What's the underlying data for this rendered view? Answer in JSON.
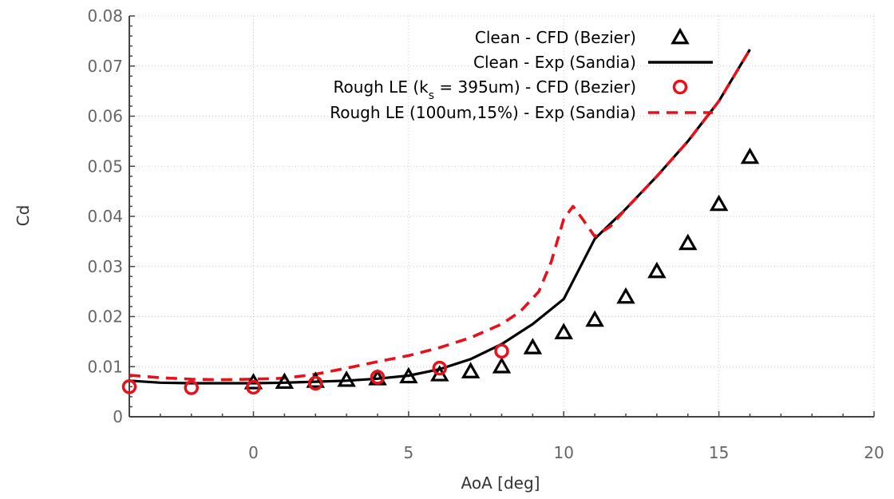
{
  "chart_data": {
    "type": "line",
    "title": "",
    "xlabel": "AoA [deg]",
    "ylabel": "Cd",
    "xlim": [
      -4,
      20
    ],
    "ylim": [
      0,
      0.08
    ],
    "x_ticks": [
      0,
      5,
      10,
      15,
      20
    ],
    "x_tick_labels": [
      "0",
      "5",
      "10",
      "15",
      "20"
    ],
    "y_ticks": [
      0,
      0.01,
      0.02,
      0.03,
      0.04,
      0.05,
      0.06,
      0.07,
      0.08
    ],
    "y_tick_labels": [
      "0",
      "0.01",
      "0.02",
      "0.03",
      "0.04",
      "0.05",
      "0.06",
      "0.07",
      "0.08"
    ],
    "grid": true,
    "legend_position": "top-right",
    "series": [
      {
        "name": "Clean - CFD (Bezier)",
        "style": "markers",
        "marker": "triangle",
        "color": "#000000",
        "x": [
          0,
          1,
          2,
          3,
          4,
          5,
          6,
          7,
          8,
          9,
          10,
          11,
          12,
          13,
          14,
          15,
          16
        ],
        "y": [
          0.0068,
          0.0069,
          0.0071,
          0.0073,
          0.0076,
          0.008,
          0.0084,
          0.009,
          0.01,
          0.0138,
          0.0168,
          0.0193,
          0.0239,
          0.029,
          0.0346,
          0.0424,
          0.0518
        ]
      },
      {
        "name": "Clean - Exp (Sandia)",
        "style": "solid",
        "color": "#000000",
        "x": [
          -4,
          -3,
          -2,
          -1,
          0,
          1,
          2,
          3,
          4,
          5,
          6,
          7,
          8,
          9,
          10,
          11,
          12,
          13,
          14,
          15,
          16
        ],
        "y": [
          0.0072,
          0.0068,
          0.0067,
          0.0067,
          0.0067,
          0.0068,
          0.007,
          0.0072,
          0.0076,
          0.0082,
          0.0095,
          0.0115,
          0.0145,
          0.0185,
          0.0235,
          0.0355,
          0.0415,
          0.048,
          0.055,
          0.063,
          0.0733
        ]
      },
      {
        "name": "Rough LE (k_s = 395um)  - CFD (Bezier)",
        "style": "markers",
        "marker": "circle",
        "color": "#e8101a",
        "x": [
          -4,
          -2,
          0,
          2,
          4,
          6,
          8
        ],
        "y": [
          0.006,
          0.0058,
          0.0059,
          0.0067,
          0.0079,
          0.0097,
          0.0131
        ]
      },
      {
        "name": "Rough LE (100um,15%) - Exp (Sandia)",
        "style": "dashed",
        "color": "#e8101a",
        "x": [
          -4,
          -3,
          -2,
          -1,
          0,
          1,
          2,
          3,
          4,
          5,
          6,
          7,
          8,
          8.6,
          9.2,
          9.6,
          10,
          10.3,
          10.6,
          11,
          11.5,
          12,
          13,
          14,
          15,
          16
        ],
        "y": [
          0.0083,
          0.0078,
          0.0075,
          0.0074,
          0.0075,
          0.0077,
          0.0085,
          0.0097,
          0.011,
          0.0122,
          0.0138,
          0.0158,
          0.0185,
          0.021,
          0.025,
          0.031,
          0.0395,
          0.042,
          0.0395,
          0.036,
          0.038,
          0.0415,
          0.048,
          0.055,
          0.063,
          0.0733
        ]
      }
    ]
  }
}
